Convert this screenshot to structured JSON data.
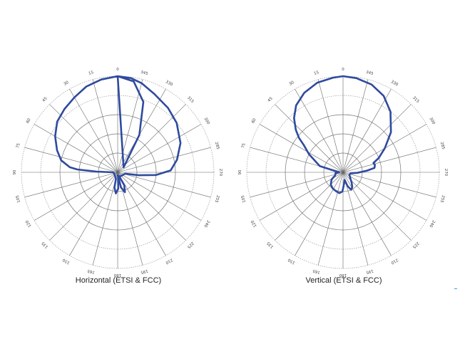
{
  "chart_data": [
    {
      "type": "polar",
      "title": "Horizontal (ETSI & FCC)",
      "rings": 5,
      "angle_step_deg": 15,
      "angle_labels": [
        "0",
        "15",
        "30",
        "45",
        "60",
        "75",
        "90",
        "105",
        "120",
        "135",
        "150",
        "165",
        "180",
        "195",
        "210",
        "225",
        "240",
        "255",
        "270",
        "285",
        "300",
        "315",
        "330",
        "345"
      ],
      "r_max": 1.0,
      "series": [
        {
          "color": "#2f4a9e",
          "curve": [
            [
              -50,
              0.08
            ],
            [
              -30,
              0.45
            ],
            [
              -20,
              0.78
            ],
            [
              -10,
              0.96
            ],
            [
              0,
              1.0
            ],
            [
              10,
              0.98
            ],
            [
              20,
              0.95
            ],
            [
              30,
              0.9
            ],
            [
              40,
              0.86
            ],
            [
              50,
              0.82
            ],
            [
              60,
              0.75
            ],
            [
              70,
              0.67
            ],
            [
              78,
              0.6
            ],
            [
              84,
              0.5
            ],
            [
              86,
              0.42
            ],
            [
              88,
              0.22
            ],
            [
              90,
              0.05
            ],
            [
              100,
              0.04
            ],
            [
              165,
              0.07
            ],
            [
              168,
              0.16
            ],
            [
              175,
              0.22
            ],
            [
              182,
              0.17
            ],
            [
              185,
              0.04
            ],
            [
              180,
              0.03
            ],
            [
              190,
              0.07
            ],
            [
              192,
              0.16
            ],
            [
              200,
              0.22
            ],
            [
              207,
              0.15
            ],
            [
              200,
              0.04
            ],
            [
              210,
              0.05
            ],
            [
              260,
              0.08
            ],
            [
              262,
              0.22
            ],
            [
              266,
              0.4
            ],
            [
              272,
              0.55
            ],
            [
              282,
              0.63
            ],
            [
              295,
              0.72
            ],
            [
              310,
              0.8
            ],
            [
              322,
              0.85
            ],
            [
              335,
              0.9
            ],
            [
              345,
              0.96
            ],
            [
              352,
              0.99
            ],
            [
              360,
              1.0
            ]
          ]
        }
      ]
    },
    {
      "type": "polar",
      "title": "Vertical (ETSI & FCC)",
      "rings": 5,
      "angle_step_deg": 15,
      "angle_labels": [
        "0",
        "15",
        "30",
        "45",
        "60",
        "75",
        "90",
        "105",
        "120",
        "135",
        "150",
        "165",
        "180",
        "195",
        "210",
        "225",
        "240",
        "255",
        "270",
        "285",
        "300",
        "315",
        "330",
        "345"
      ],
      "r_max": 1.0,
      "series": [
        {
          "color": "#2f4a9e",
          "curve": [
            [
              90,
              0.04
            ],
            [
              75,
              0.25
            ],
            [
              62,
              0.4
            ],
            [
              55,
              0.5
            ],
            [
              52,
              0.58
            ],
            [
              48,
              0.66
            ],
            [
              42,
              0.76
            ],
            [
              35,
              0.85
            ],
            [
              26,
              0.92
            ],
            [
              16,
              0.97
            ],
            [
              6,
              0.99
            ],
            [
              0,
              1.0
            ],
            [
              352,
              0.99
            ],
            [
              342,
              0.96
            ],
            [
              332,
              0.9
            ],
            [
              322,
              0.8
            ],
            [
              310,
              0.65
            ],
            [
              300,
              0.5
            ],
            [
              292,
              0.4
            ],
            [
              287,
              0.33
            ],
            [
              283,
              0.34
            ],
            [
              278,
              0.33
            ],
            [
              274,
              0.25
            ],
            [
              268,
              0.15
            ],
            [
              262,
              0.08
            ],
            [
              250,
              0.07
            ],
            [
              230,
              0.1
            ],
            [
              220,
              0.14
            ],
            [
              212,
              0.18
            ],
            [
              205,
              0.2
            ],
            [
              198,
              0.15
            ],
            [
              192,
              0.08
            ],
            [
              185,
              0.12
            ],
            [
              178,
              0.2
            ],
            [
              170,
              0.22
            ],
            [
              160,
              0.21
            ],
            [
              148,
              0.2
            ],
            [
              135,
              0.18
            ],
            [
              122,
              0.14
            ],
            [
              112,
              0.09
            ],
            [
              104,
              0.08
            ],
            [
              96,
              0.08
            ],
            [
              92,
              0.05
            ]
          ]
        }
      ]
    }
  ]
}
